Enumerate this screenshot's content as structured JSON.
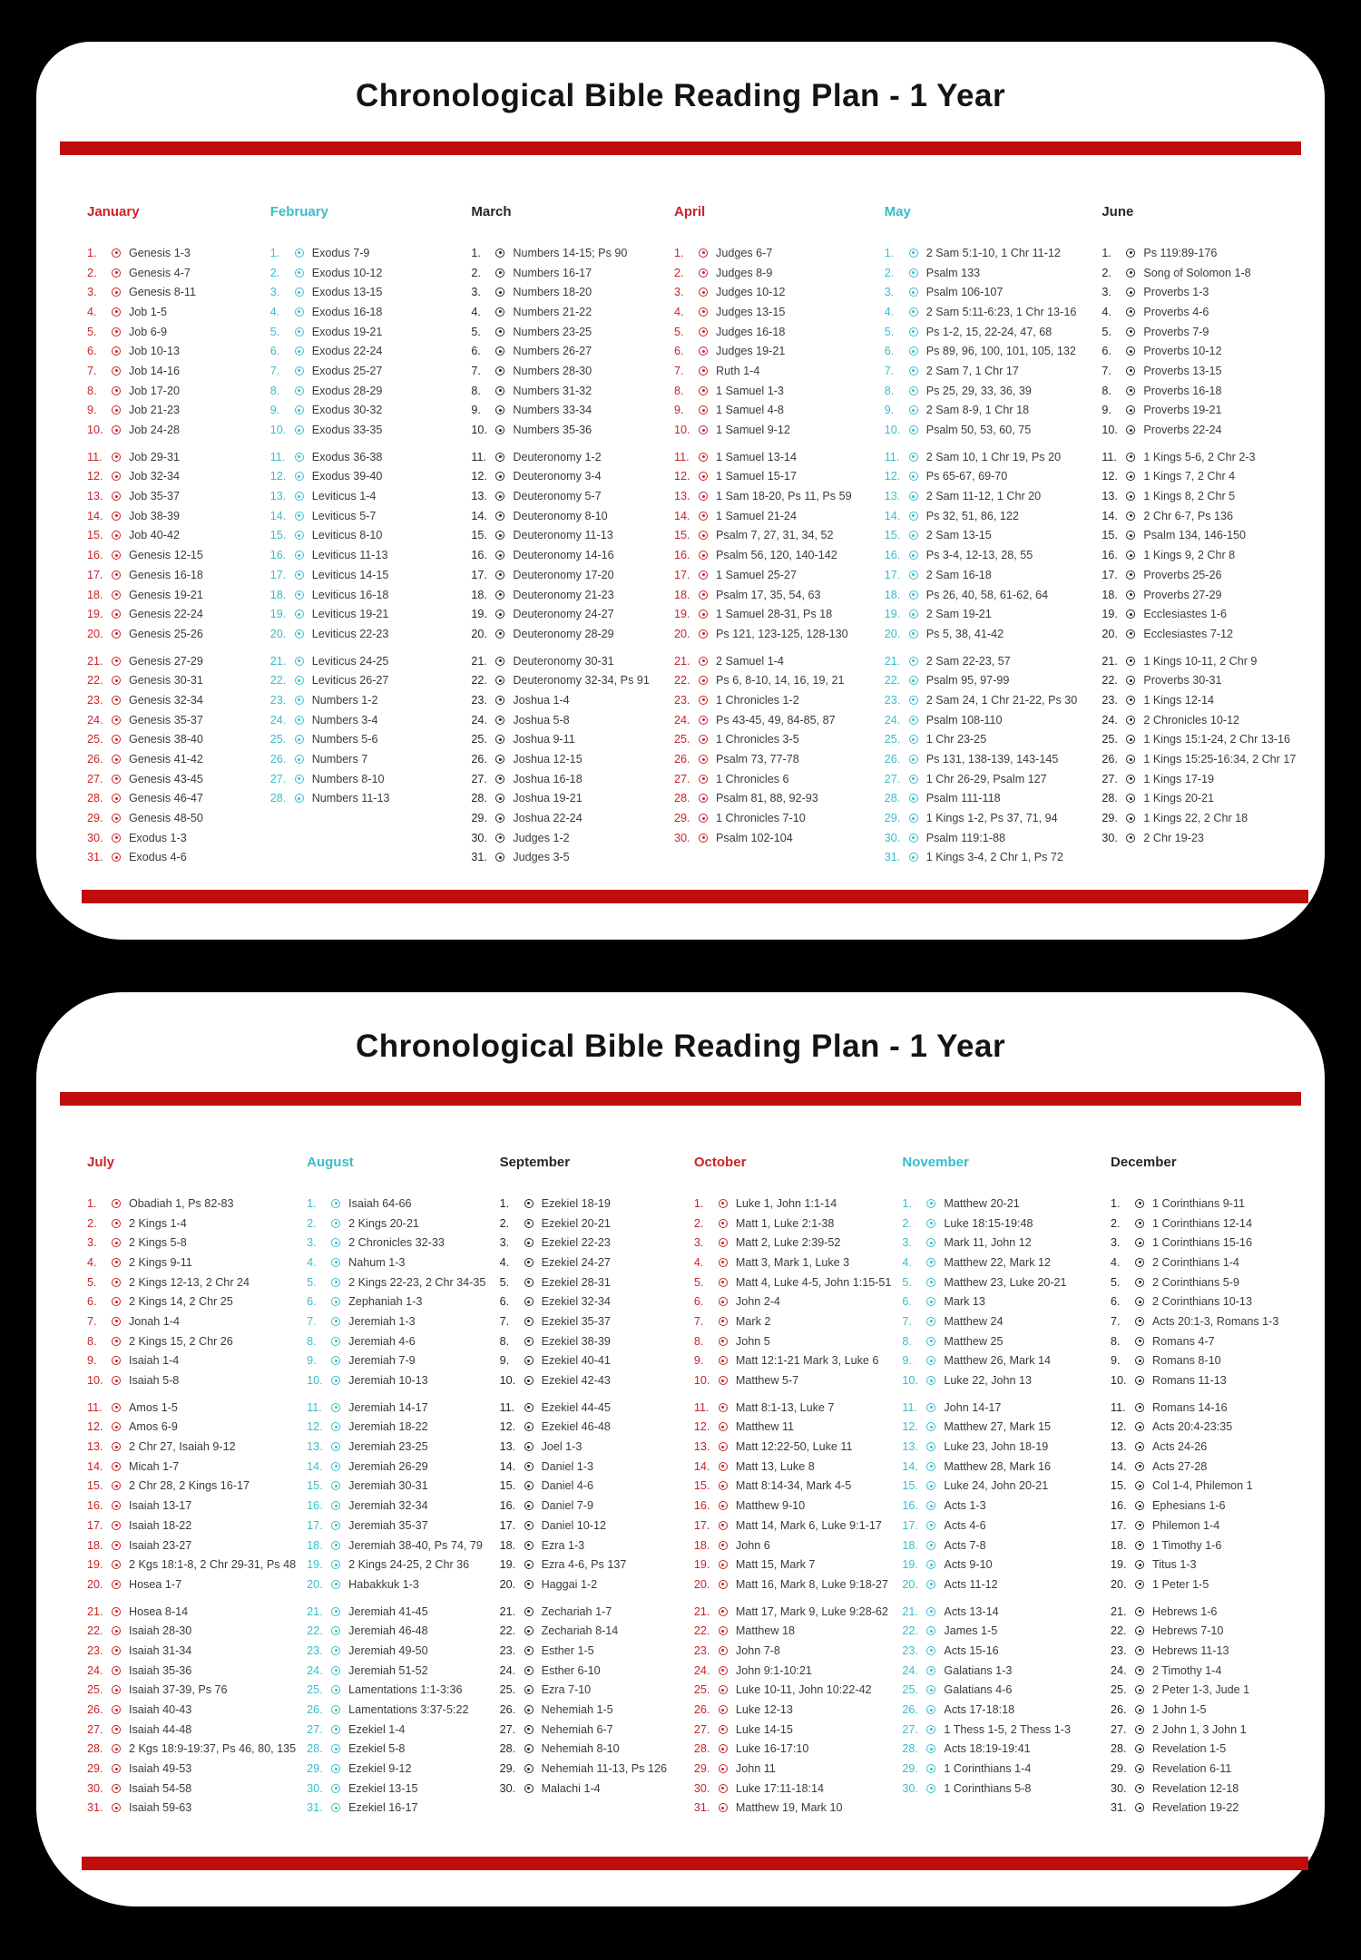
{
  "title": "Chronological Bible Reading Plan - 1 Year",
  "colors": {
    "month_red": "#cb2227",
    "month_teal": "#36bec9",
    "month_dark": "#262626",
    "bar_red": "#c00c0c",
    "text": "#3a3a3a",
    "card": "#ffffff",
    "background": "#000000"
  },
  "pages": [
    {
      "months": [
        {
          "name": "January",
          "theme": "month_red",
          "entries": [
            "Genesis 1-3",
            "Genesis 4-7",
            "Genesis 8-11",
            "Job 1-5",
            "Job 6-9",
            "Job 10-13",
            "Job 14-16",
            "Job 17-20",
            "Job 21-23",
            "Job 24-28",
            "Job 29-31",
            "Job 32-34",
            "Job 35-37",
            "Job 38-39",
            "Job 40-42",
            "Genesis 12-15",
            "Genesis 16-18",
            "Genesis 19-21",
            "Genesis 22-24",
            "Genesis 25-26",
            "Genesis 27-29",
            "Genesis 30-31",
            "Genesis 32-34",
            "Genesis 35-37",
            "Genesis 38-40",
            "Genesis 41-42",
            "Genesis 43-45",
            "Genesis 46-47",
            "Genesis 48-50",
            "Exodus 1-3",
            "Exodus 4-6"
          ]
        },
        {
          "name": "February",
          "theme": "month_teal",
          "entries": [
            "Exodus 7-9",
            "Exodus 10-12",
            "Exodus 13-15",
            "Exodus 16-18",
            "Exodus 19-21",
            "Exodus 22-24",
            "Exodus 25-27",
            "Exodus 28-29",
            "Exodus 30-32",
            "Exodus 33-35",
            "Exodus 36-38",
            "Exodus 39-40",
            "Leviticus 1-4",
            "Leviticus 5-7",
            "Leviticus 8-10",
            "Leviticus 11-13",
            "Leviticus 14-15",
            "Leviticus 16-18",
            "Leviticus 19-21",
            "Leviticus 22-23",
            "Leviticus 24-25",
            "Leviticus 26-27",
            "Numbers 1-2",
            "Numbers 3-4",
            "Numbers 5-6",
            "Numbers 7",
            "Numbers 8-10",
            "Numbers 11-13"
          ]
        },
        {
          "name": "March",
          "theme": "month_dark",
          "entries": [
            "Numbers 14-15; Ps 90",
            "Numbers 16-17",
            "Numbers 18-20",
            "Numbers 21-22",
            "Numbers 23-25",
            "Numbers 26-27",
            "Numbers 28-30",
            "Numbers 31-32",
            "Numbers 33-34",
            "Numbers 35-36",
            "Deuteronomy 1-2",
            "Deuteronomy 3-4",
            "Deuteronomy 5-7",
            "Deuteronomy 8-10",
            "Deuteronomy 11-13",
            "Deuteronomy 14-16",
            "Deuteronomy 17-20",
            "Deuteronomy 21-23",
            "Deuteronomy 24-27",
            "Deuteronomy 28-29",
            "Deuteronomy 30-31",
            "Deuteronomy 32-34, Ps 91",
            "Joshua 1-4",
            "Joshua 5-8",
            "Joshua 9-11",
            "Joshua 12-15",
            "Joshua 16-18",
            "Joshua 19-21",
            "Joshua 22-24",
            "Judges 1-2",
            "Judges 3-5"
          ]
        },
        {
          "name": "April",
          "theme": "month_red",
          "entries": [
            "Judges 6-7",
            "Judges 8-9",
            "Judges 10-12",
            "Judges 13-15",
            "Judges 16-18",
            "Judges 19-21",
            "Ruth 1-4",
            "1 Samuel 1-3",
            "1 Samuel 4-8",
            "1 Samuel 9-12",
            "1 Samuel 13-14",
            "1 Samuel 15-17",
            "1 Sam 18-20, Ps 11, Ps 59",
            "1 Samuel 21-24",
            "Psalm 7, 27, 31, 34, 52",
            "Psalm 56, 120, 140-142",
            "1 Samuel 25-27",
            "Psalm 17, 35, 54, 63",
            "1 Samuel 28-31, Ps 18",
            "Ps 121, 123-125, 128-130",
            "2 Samuel 1-4",
            "Ps 6, 8-10, 14, 16, 19, 21",
            "1 Chronicles 1-2",
            "Ps 43-45, 49, 84-85, 87",
            "1 Chronicles 3-5",
            "Psalm 73, 77-78",
            "1 Chronicles 6",
            "Psalm 81, 88, 92-93",
            "1 Chronicles 7-10",
            "Psalm 102-104"
          ]
        },
        {
          "name": "May",
          "theme": "month_teal",
          "entries": [
            "2 Sam 5:1-10, 1 Chr 11-12",
            "Psalm 133",
            "Psalm 106-107",
            "2 Sam 5:11-6:23, 1 Chr 13-16",
            "Ps 1-2, 15, 22-24, 47, 68",
            "Ps 89, 96, 100, 101, 105, 132",
            "2 Sam 7, 1 Chr 17",
            "Ps 25, 29, 33, 36, 39",
            "2 Sam 8-9, 1 Chr 18",
            "Psalm 50, 53, 60, 75",
            "2 Sam 10, 1 Chr 19, Ps 20",
            "Ps 65-67, 69-70",
            "2 Sam 11-12, 1 Chr 20",
            "Ps 32, 51, 86, 122",
            "2 Sam 13-15",
            "Ps 3-4, 12-13, 28, 55",
            "2 Sam 16-18",
            "Ps 26, 40, 58, 61-62, 64",
            "2 Sam 19-21",
            "Ps 5, 38, 41-42",
            "2 Sam 22-23, 57",
            "Psalm 95, 97-99",
            "2 Sam 24, 1 Chr 21-22, Ps 30",
            "Psalm 108-110",
            "1 Chr 23-25",
            "Ps 131, 138-139, 143-145",
            "1 Chr 26-29, Psalm 127",
            "Psalm 111-118",
            "1 Kings 1-2, Ps 37, 71, 94",
            "Psalm 119:1-88",
            "1 Kings 3-4, 2 Chr 1, Ps 72"
          ]
        },
        {
          "name": "June",
          "theme": "month_dark",
          "entries": [
            "Ps 119:89-176",
            "Song of Solomon 1-8",
            "Proverbs 1-3",
            "Proverbs 4-6",
            "Proverbs 7-9",
            "Proverbs 10-12",
            "Proverbs 13-15",
            "Proverbs 16-18",
            "Proverbs 19-21",
            "Proverbs 22-24",
            "1 Kings 5-6, 2 Chr 2-3",
            "1 Kings 7, 2 Chr 4",
            "1 Kings 8, 2 Chr 5",
            "2 Chr 6-7, Ps 136",
            "Psalm 134, 146-150",
            "1 Kings 9, 2 Chr 8",
            "Proverbs 25-26",
            "Proverbs 27-29",
            "Ecclesiastes 1-6",
            "Ecclesiastes 7-12",
            "1 Kings 10-11, 2 Chr 9",
            "Proverbs 30-31",
            "1 Kings 12-14",
            "2 Chronicles 10-12",
            "1 Kings 15:1-24, 2 Chr 13-16",
            "1 Kings 15:25-16:34, 2 Chr 17",
            "1 Kings 17-19",
            "1 Kings 20-21",
            "1 Kings 22, 2 Chr 18",
            "2 Chr 19-23"
          ]
        }
      ]
    },
    {
      "months": [
        {
          "name": "July",
          "theme": "month_red",
          "entries": [
            "Obadiah 1, Ps 82-83",
            "2 Kings 1-4",
            "2 Kings 5-8",
            "2 Kings 9-11",
            "2 Kings 12-13, 2 Chr 24",
            "2 Kings 14, 2 Chr 25",
            "Jonah 1-4",
            "2 Kings 15, 2 Chr 26",
            "Isaiah 1-4",
            "Isaiah 5-8",
            "Amos 1-5",
            "Amos 6-9",
            "2 Chr 27, Isaiah 9-12",
            "Micah 1-7",
            "2 Chr 28, 2 Kings 16-17",
            "Isaiah 13-17",
            "Isaiah 18-22",
            "Isaiah 23-27",
            "2 Kgs 18:1-8, 2 Chr 29-31, Ps 48",
            "Hosea 1-7",
            "Hosea 8-14",
            "Isaiah 28-30",
            "Isaiah 31-34",
            "Isaiah 35-36",
            "Isaiah 37-39, Ps 76",
            "Isaiah 40-43",
            "Isaiah 44-48",
            "2 Kgs 18:9-19:37, Ps 46, 80, 135",
            "Isaiah 49-53",
            "Isaiah 54-58",
            "Isaiah 59-63"
          ]
        },
        {
          "name": "August",
          "theme": "month_teal",
          "entries": [
            "Isaiah 64-66",
            "2 Kings 20-21",
            "2 Chronicles 32-33",
            "Nahum 1-3",
            "2 Kings 22-23, 2 Chr 34-35",
            "Zephaniah 1-3",
            "Jeremiah 1-3",
            "Jeremiah 4-6",
            "Jeremiah 7-9",
            "Jeremiah 10-13",
            "Jeremiah 14-17",
            "Jeremiah 18-22",
            "Jeremiah 23-25",
            "Jeremiah 26-29",
            "Jeremiah 30-31",
            "Jeremiah 32-34",
            "Jeremiah 35-37",
            "Jeremiah 38-40, Ps 74, 79",
            "2 Kings 24-25, 2 Chr 36",
            "Habakkuk 1-3",
            "Jeremiah 41-45",
            "Jeremiah 46-48",
            "Jeremiah 49-50",
            "Jeremiah 51-52",
            "Lamentations 1:1-3:36",
            "Lamentations 3:37-5:22",
            "Ezekiel 1-4",
            "Ezekiel 5-8",
            "Ezekiel 9-12",
            "Ezekiel 13-15",
            "Ezekiel 16-17"
          ]
        },
        {
          "name": "September",
          "theme": "month_dark",
          "entries": [
            "Ezekiel 18-19",
            "Ezekiel 20-21",
            "Ezekiel 22-23",
            "Ezekiel 24-27",
            "Ezekiel 28-31",
            "Ezekiel 32-34",
            "Ezekiel 35-37",
            "Ezekiel 38-39",
            "Ezekiel 40-41",
            "Ezekiel 42-43",
            "Ezekiel 44-45",
            "Ezekiel 46-48",
            "Joel 1-3",
            "Daniel 1-3",
            "Daniel 4-6",
            "Daniel 7-9",
            "Daniel 10-12",
            "Ezra 1-3",
            "Ezra 4-6, Ps 137",
            "Haggai 1-2",
            "Zechariah 1-7",
            "Zechariah 8-14",
            "Esther 1-5",
            "Esther 6-10",
            "Ezra 7-10",
            "Nehemiah 1-5",
            "Nehemiah 6-7",
            "Nehemiah 8-10",
            "Nehemiah 11-13, Ps 126",
            "Malachi 1-4"
          ]
        },
        {
          "name": "October",
          "theme": "month_red",
          "entries": [
            "Luke 1, John 1:1-14",
            "Matt 1, Luke 2:1-38",
            "Matt 2, Luke 2:39-52",
            "Matt 3, Mark 1, Luke 3",
            "Matt 4, Luke 4-5, John 1:15-51",
            "John 2-4",
            "Mark 2",
            "John 5",
            "Matt 12:1-21 Mark 3, Luke 6",
            "Matthew 5-7",
            "Matt 8:1-13, Luke 7",
            "Matthew 11",
            "Matt 12:22-50, Luke 11",
            "Matt 13, Luke 8",
            "Matt 8:14-34, Mark 4-5",
            "Matthew 9-10",
            "Matt 14, Mark 6, Luke 9:1-17",
            "John 6",
            "Matt 15, Mark 7",
            "Matt 16, Mark 8, Luke 9:18-27",
            "Matt 17, Mark 9, Luke 9:28-62",
            "Matthew 18",
            "John 7-8",
            "John 9:1-10:21",
            "Luke 10-11, John 10:22-42",
            "Luke 12-13",
            "Luke 14-15",
            "Luke 16-17:10",
            "John 11",
            "Luke 17:11-18:14",
            "Matthew 19, Mark 10"
          ]
        },
        {
          "name": "November",
          "theme": "month_teal",
          "entries": [
            "Matthew 20-21",
            "Luke 18:15-19:48",
            "Mark 11, John 12",
            "Matthew 22, Mark 12",
            "Matthew 23, Luke 20-21",
            "Mark 13",
            "Matthew 24",
            "Matthew 25",
            "Matthew 26, Mark 14",
            "Luke 22, John 13",
            "John 14-17",
            "Matthew 27, Mark 15",
            "Luke 23, John 18-19",
            "Matthew 28, Mark 16",
            "Luke 24, John 20-21",
            "Acts 1-3",
            "Acts 4-6",
            "Acts 7-8",
            "Acts 9-10",
            "Acts 11-12",
            "Acts 13-14",
            "James 1-5",
            "Acts 15-16",
            "Galatians 1-3",
            "Galatians 4-6",
            "Acts 17-18:18",
            "1 Thess 1-5, 2 Thess 1-3",
            "Acts 18:19-19:41",
            "1 Corinthians 1-4",
            "1 Corinthians 5-8"
          ]
        },
        {
          "name": "December",
          "theme": "month_dark",
          "entries": [
            "1 Corinthians 9-11",
            "1 Corinthians 12-14",
            "1 Corinthians 15-16",
            "2 Corinthians 1-4",
            "2 Corinthians 5-9",
            "2 Corinthians 10-13",
            "Acts 20:1-3, Romans 1-3",
            "Romans 4-7",
            "Romans 8-10",
            "Romans 11-13",
            "Romans 14-16",
            "Acts 20:4-23:35",
            "Acts 24-26",
            "Acts 27-28",
            "Col 1-4, Philemon 1",
            "Ephesians 1-6",
            "Philemon 1-4",
            "1 Timothy 1-6",
            "Titus 1-3",
            "1 Peter 1-5",
            "Hebrews 1-6",
            "Hebrews 7-10",
            "Hebrews 11-13",
            "2 Timothy 1-4",
            "2 Peter 1-3, Jude 1",
            "1 John 1-5",
            "2 John 1, 3 John 1",
            "Revelation 1-5",
            "Revelation 6-11",
            "Revelation 12-18",
            "Revelation 19-22"
          ]
        }
      ]
    }
  ]
}
